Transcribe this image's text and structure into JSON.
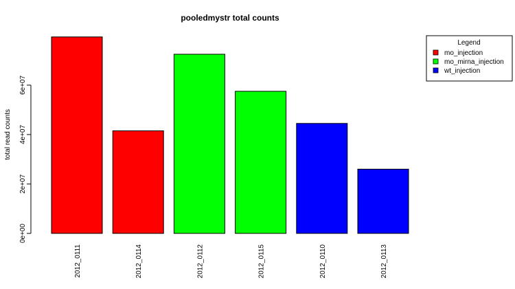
{
  "chart_data": {
    "type": "bar",
    "title": "pooledmystr total counts",
    "xlabel": "",
    "ylabel": "total read counts",
    "ylim": [
      0,
      80000000
    ],
    "yticks": [
      0,
      20000000,
      40000000,
      60000000
    ],
    "ytick_labels": [
      "0e+00",
      "2e+07",
      "4e+07",
      "6e+07"
    ],
    "categories": [
      "2012_0111",
      "2012_0114",
      "2012_0112",
      "2012_0115",
      "2012_0110",
      "2012_0113"
    ],
    "values": [
      79500000,
      41500000,
      72500000,
      57500000,
      44500000,
      26000000
    ],
    "bar_groups": [
      "mo_injection",
      "mo_injection",
      "mo_mirna_injection",
      "mo_mirna_injection",
      "wt_injection",
      "wt_injection"
    ],
    "grid": false,
    "legend": {
      "title": "Legend",
      "placement": "top-right",
      "entries": [
        {
          "name": "mo_injection",
          "color": "#ff0000"
        },
        {
          "name": "mo_mirna_injection",
          "color": "#00ff00"
        },
        {
          "name": "wt_injection",
          "color": "#0000ff"
        }
      ]
    }
  }
}
